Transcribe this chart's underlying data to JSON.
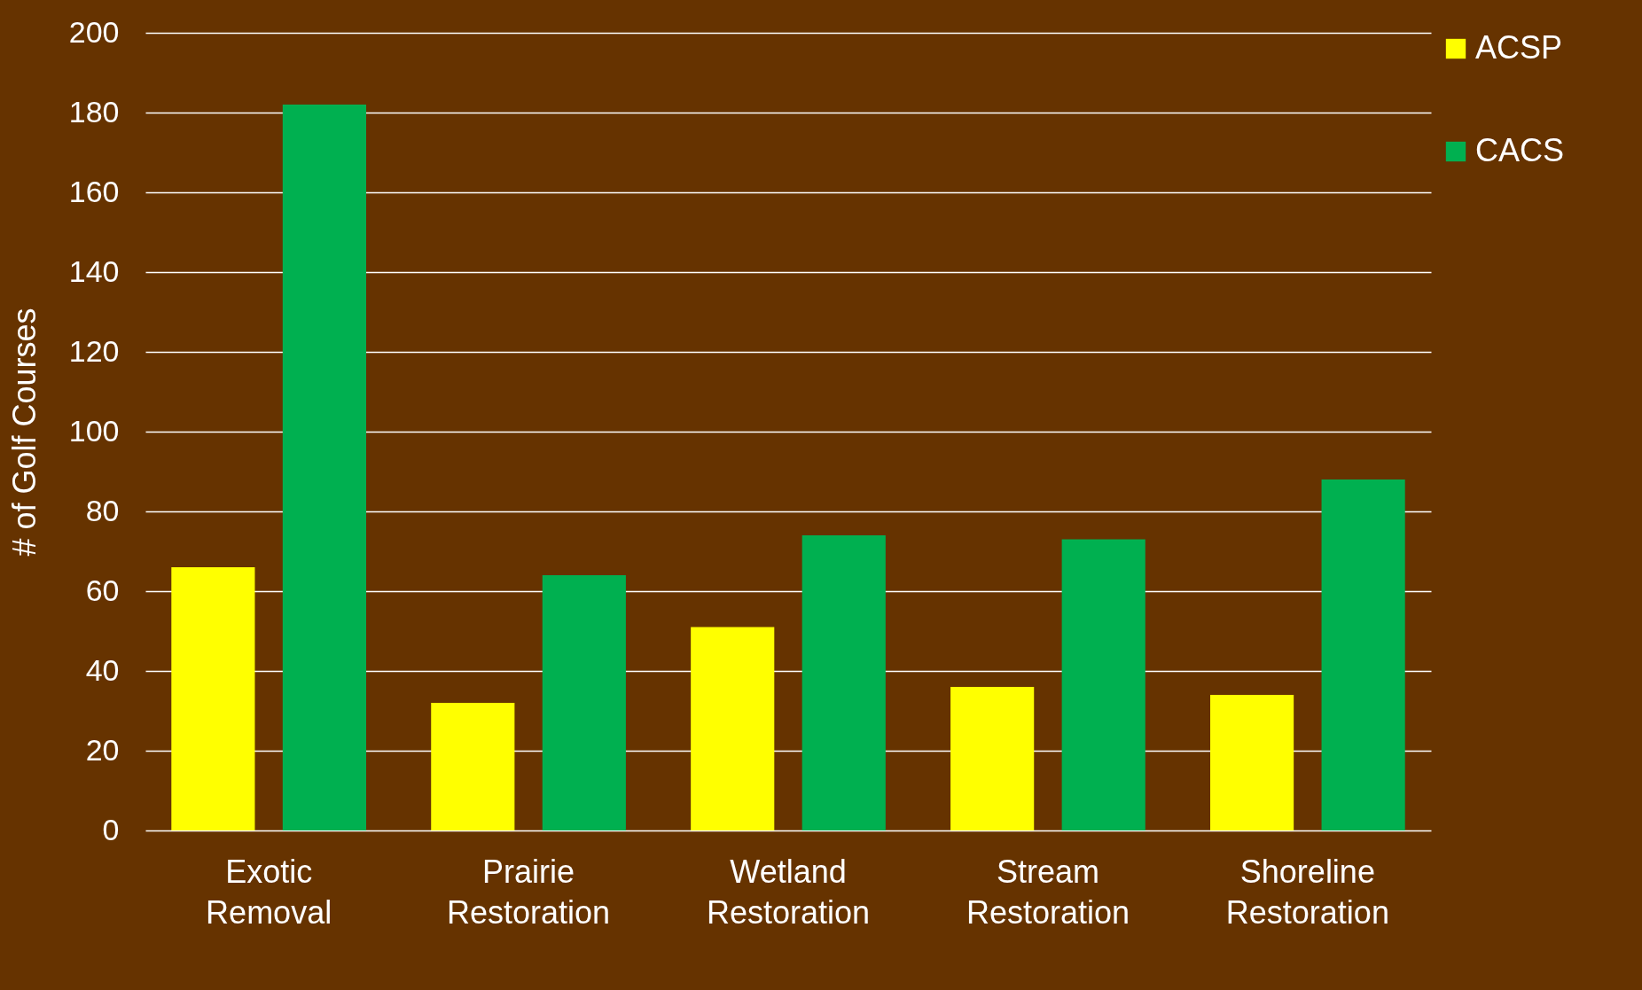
{
  "chart_data": {
    "type": "bar",
    "ylabel": "# of Golf Courses",
    "categories": [
      "Exotic Removal",
      "Prairie Restoration",
      "Wetland Restoration",
      "Stream Restoration",
      "Shoreline Restoration"
    ],
    "series": [
      {
        "name": "ACSP",
        "color": "#ffff00",
        "values": [
          66,
          32,
          51,
          36,
          34
        ]
      },
      {
        "name": "CACS",
        "color": "#00b050",
        "values": [
          182,
          64,
          74,
          73,
          88
        ]
      }
    ],
    "ylim": [
      0,
      200
    ],
    "yticks": [
      0,
      20,
      40,
      60,
      80,
      100,
      120,
      140,
      160,
      180,
      200
    ],
    "grid": "y",
    "legend": "right"
  }
}
